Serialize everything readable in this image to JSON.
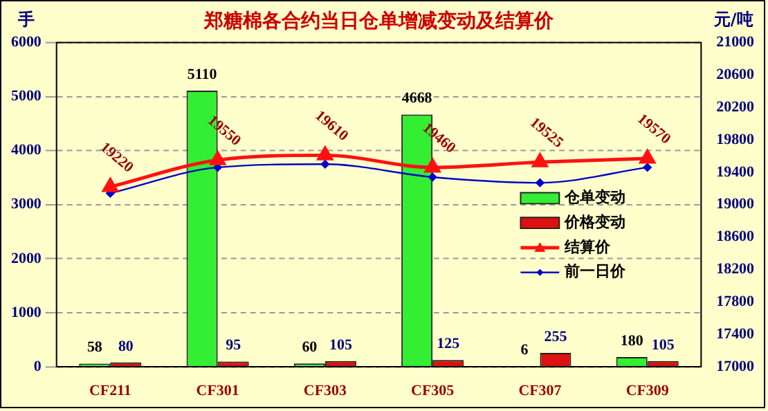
{
  "chart_data": {
    "type": "bar",
    "title": "郑糖棉各合约当日仓单增减变动及结算价",
    "ylabel": "手",
    "y2label": "元/吨",
    "categories": [
      "CF211",
      "CF301",
      "CF303",
      "CF305",
      "CF307",
      "CF309"
    ],
    "series": [
      {
        "name": "仓单变动",
        "color": "#33ee33",
        "values": [
          58,
          5110,
          60,
          4668,
          6,
          180
        ],
        "value_labels": [
          "58",
          "5110",
          "60",
          "4668",
          "6",
          "180"
        ]
      },
      {
        "name": "价格变动",
        "color": "#dd1111",
        "values": [
          80,
          95,
          105,
          125,
          255,
          105
        ],
        "value_labels": [
          "80",
          "95",
          "105",
          "125",
          "255",
          "105"
        ]
      },
      {
        "name": "结算价",
        "type": "line",
        "axis": "y2",
        "color": "#ff1111",
        "marker": "triangle",
        "values": [
          19220,
          19550,
          19610,
          19460,
          19525,
          19570
        ],
        "value_labels": [
          "19220",
          "19550",
          "19610",
          "19460",
          "19525",
          "19570"
        ]
      },
      {
        "name": "前一日价",
        "type": "line",
        "axis": "y2",
        "color": "#0000cc",
        "marker": "diamond",
        "values": [
          19140,
          19460,
          19500,
          19340,
          19270,
          19460
        ]
      }
    ],
    "ylim": [
      0,
      6000
    ],
    "yticks": [
      0,
      1000,
      2000,
      3000,
      4000,
      5000,
      6000
    ],
    "y2lim": [
      17000,
      21000
    ],
    "y2ticks": [
      17000,
      17400,
      17800,
      18200,
      18600,
      19000,
      19400,
      19800,
      20200,
      20600,
      21000
    ],
    "grid": "y",
    "legend": "right"
  }
}
